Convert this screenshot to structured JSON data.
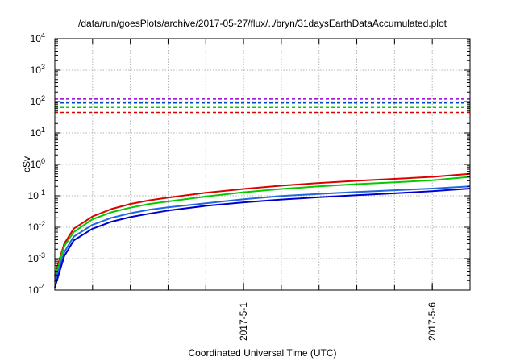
{
  "chart_data": {
    "type": "line",
    "title": "/data/run/goesPlots/archive/2017-05-27/flux/../bryn/31daysEarthDataAccumulated.plot",
    "xlabel": "Coordinated Universal Time (UTC)",
    "ylabel": "cSv",
    "y_scale": "log",
    "ylim": [
      0.0001,
      10000
    ],
    "xlim": [
      "2017-04-26",
      "2017-05-07"
    ],
    "x_ticks": [
      "2017-5-1",
      "2017-5-6"
    ],
    "y_ticks": [
      {
        "base": "10",
        "exp": "-4"
      },
      {
        "base": "10",
        "exp": "-3"
      },
      {
        "base": "10",
        "exp": "-2"
      },
      {
        "base": "10",
        "exp": "-1"
      },
      {
        "base": "10",
        "exp": "0"
      },
      {
        "base": "10",
        "exp": "1"
      },
      {
        "base": "10",
        "exp": "2"
      },
      {
        "base": "10",
        "exp": "3"
      },
      {
        "base": "10",
        "exp": "4"
      }
    ],
    "grid": true,
    "series": [
      {
        "color": "#dd0000",
        "style": "solid",
        "x": [
          "2017-04-26",
          "2017-04-26 06:00",
          "2017-04-26 12:00",
          "2017-04-27",
          "2017-04-27 12:00",
          "2017-04-28",
          "2017-04-28 12:00",
          "2017-04-29",
          "2017-04-30",
          "2017-05-01",
          "2017-05-02",
          "2017-05-03",
          "2017-05-04",
          "2017-05-05",
          "2017-05-06",
          "2017-05-07"
        ],
        "values": [
          0.0003,
          0.003,
          0.009,
          0.022,
          0.038,
          0.055,
          0.072,
          0.088,
          0.125,
          0.165,
          0.21,
          0.255,
          0.3,
          0.345,
          0.4,
          0.5
        ]
      },
      {
        "color": "#00cc00",
        "style": "solid",
        "x": [
          "2017-04-26",
          "2017-04-26 06:00",
          "2017-04-26 12:00",
          "2017-04-27",
          "2017-04-27 12:00",
          "2017-04-28",
          "2017-04-28 12:00",
          "2017-04-29",
          "2017-04-30",
          "2017-05-01",
          "2017-05-02",
          "2017-05-03",
          "2017-05-04",
          "2017-05-05",
          "2017-05-06",
          "2017-05-07"
        ],
        "values": [
          0.00025,
          0.0025,
          0.007,
          0.018,
          0.03,
          0.042,
          0.055,
          0.066,
          0.095,
          0.13,
          0.165,
          0.2,
          0.235,
          0.27,
          0.31,
          0.4
        ]
      },
      {
        "color": "#2266dd",
        "style": "solid",
        "x": [
          "2017-04-26",
          "2017-04-26 06:00",
          "2017-04-26 12:00",
          "2017-04-27",
          "2017-04-27 12:00",
          "2017-04-28",
          "2017-04-28 12:00",
          "2017-04-29",
          "2017-04-30",
          "2017-05-01",
          "2017-05-02",
          "2017-05-03",
          "2017-05-04",
          "2017-05-05",
          "2017-05-06",
          "2017-05-07"
        ],
        "values": [
          0.00018,
          0.0016,
          0.005,
          0.012,
          0.02,
          0.028,
          0.036,
          0.043,
          0.058,
          0.078,
          0.098,
          0.115,
          0.132,
          0.15,
          0.17,
          0.2
        ]
      },
      {
        "color": "#0000cc",
        "style": "solid",
        "x": [
          "2017-04-26",
          "2017-04-26 06:00",
          "2017-04-26 12:00",
          "2017-04-27",
          "2017-04-27 12:00",
          "2017-04-28",
          "2017-04-28 12:00",
          "2017-04-29",
          "2017-04-30",
          "2017-05-01",
          "2017-05-02",
          "2017-05-03",
          "2017-05-04",
          "2017-05-05",
          "2017-05-06",
          "2017-05-07"
        ],
        "values": [
          0.00012,
          0.0012,
          0.0038,
          0.009,
          0.015,
          0.021,
          0.027,
          0.034,
          0.048,
          0.062,
          0.076,
          0.09,
          0.105,
          0.12,
          0.14,
          0.17
        ]
      },
      {
        "color": "#9900cc",
        "style": "dashed",
        "x": [
          "2017-04-26",
          "2017-05-07"
        ],
        "values": [
          120,
          120
        ]
      },
      {
        "color": "#0044cc",
        "style": "dashed",
        "x": [
          "2017-04-26",
          "2017-05-07"
        ],
        "values": [
          90,
          90
        ]
      },
      {
        "color": "#00cc00",
        "style": "dashed",
        "x": [
          "2017-04-26",
          "2017-05-07"
        ],
        "values": [
          65,
          65
        ]
      },
      {
        "color": "#dd0000",
        "style": "dashed",
        "x": [
          "2017-04-26",
          "2017-05-07"
        ],
        "values": [
          45,
          45
        ]
      }
    ]
  }
}
